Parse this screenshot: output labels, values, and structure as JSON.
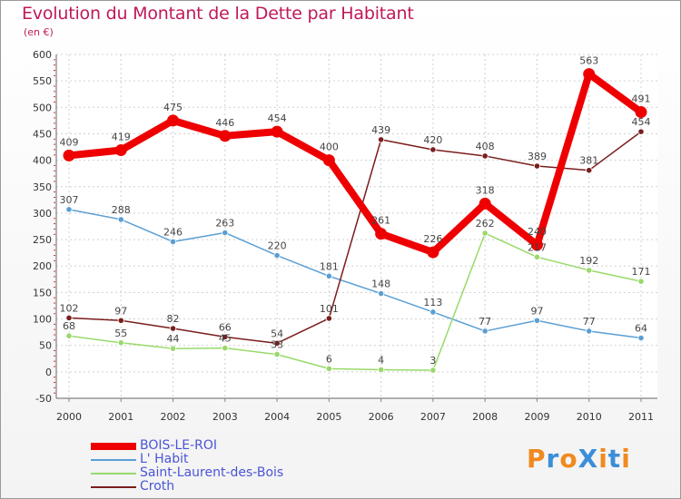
{
  "title": "Evolution du Montant de la Dette par Habitant",
  "unit_label": "(en €)",
  "logo": {
    "text": "ProXiti",
    "colors": [
      "#f08a1e",
      "#3b8ed8",
      "#f08a1e",
      "#3b8ed8",
      "#f08a1e",
      "#3b8ed8",
      "#f08a1e"
    ]
  },
  "chart_data": {
    "type": "line",
    "title": "Evolution du Montant de la Dette par Habitant",
    "ylabel": "(en €)",
    "xlabel": "",
    "categories": [
      "2000",
      "2001",
      "2002",
      "2003",
      "2004",
      "2005",
      "2006",
      "2007",
      "2008",
      "2009",
      "2010",
      "2011"
    ],
    "ylim": [
      -50,
      600
    ],
    "yticks": [
      "-50",
      "0",
      "50",
      "100",
      "150",
      "200",
      "250",
      "300",
      "350",
      "400",
      "450",
      "500",
      "550",
      "600"
    ],
    "grid": true,
    "legend_position": "bottom-left",
    "series": [
      {
        "name": "BOIS-LE-ROI",
        "color": "#ee0000",
        "emphasis": true,
        "values": [
          409,
          419,
          475,
          446,
          454,
          400,
          261,
          226,
          318,
          240,
          563,
          491
        ],
        "labels": [
          "409",
          "419",
          "475",
          "446",
          "454",
          "400",
          "261",
          "226",
          "318",
          "240",
          "563",
          "491"
        ]
      },
      {
        "name": "L' Habit",
        "color": "#5a9fd4",
        "values": [
          307,
          288,
          246,
          263,
          220,
          181,
          148,
          113,
          77,
          97,
          77,
          64
        ],
        "labels": [
          "307",
          "288",
          "246",
          "263",
          "220",
          "181",
          "148",
          "113",
          "77",
          "97",
          "77",
          "64"
        ]
      },
      {
        "name": "Saint-Laurent-des-Bois",
        "color": "#99d96b",
        "values": [
          68,
          55,
          44,
          45,
          33,
          6,
          4,
          3,
          262,
          217,
          192,
          171
        ],
        "labels": [
          "68",
          "55",
          "44",
          "45",
          "33",
          "6",
          "4",
          "3",
          "262",
          "217",
          "192",
          "171"
        ]
      },
      {
        "name": "Croth",
        "color": "#7a1d1d",
        "values": [
          102,
          97,
          82,
          66,
          54,
          101,
          439,
          420,
          408,
          389,
          381,
          454
        ],
        "labels": [
          "102",
          "97",
          "82",
          "66",
          "54",
          "101",
          "439",
          "420",
          "408",
          "389",
          "381",
          "454"
        ]
      }
    ]
  }
}
